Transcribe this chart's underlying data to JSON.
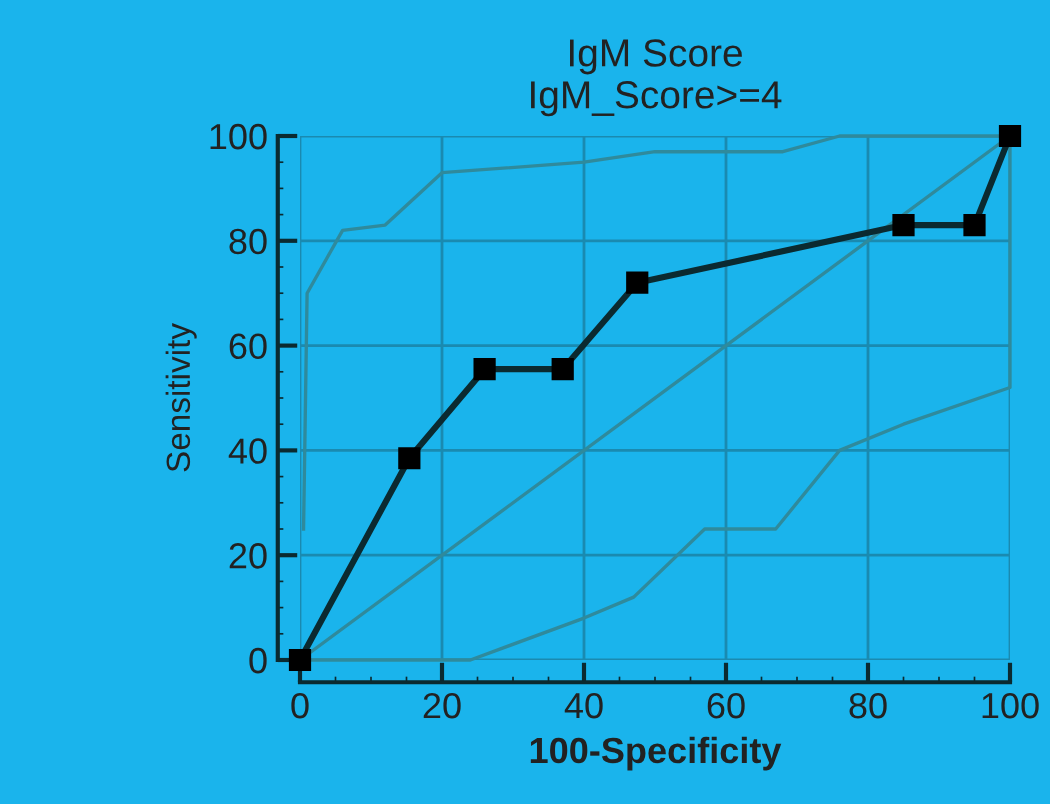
{
  "chart_data": {
    "type": "line",
    "title": "IgM Score\nIgM_Score>=4",
    "xlabel": "100-Specificity",
    "ylabel": "Sensitivity",
    "xlim": [
      0,
      100
    ],
    "ylim": [
      0,
      100
    ],
    "xticks": [
      0,
      20,
      40,
      60,
      80,
      100
    ],
    "yticks": [
      0,
      20,
      40,
      60,
      80,
      100
    ],
    "grid": true,
    "series": [
      {
        "color": "#0b2a30",
        "marker": "square",
        "x": [
          0,
          15.4,
          26,
          37,
          47.5,
          85,
          95,
          100
        ],
        "values": [
          0,
          38.5,
          55.5,
          55.5,
          72,
          83,
          83,
          100
        ]
      },
      {
        "color": "#2f8a9c",
        "marker": "none",
        "x": [
          0,
          100
        ],
        "values": [
          0,
          100
        ]
      },
      {
        "color": "#2f8a9c",
        "marker": "none",
        "x": [
          0.5,
          1,
          6,
          12,
          20,
          40,
          50,
          68,
          76,
          100
        ],
        "values": [
          25,
          70,
          82,
          83,
          93,
          95,
          97,
          97,
          100,
          100
        ]
      },
      {
        "color": "#2f8a9c",
        "marker": "none",
        "x": [
          0,
          24,
          40,
          47,
          57,
          67,
          76,
          85,
          100,
          100
        ],
        "values": [
          0,
          0,
          8,
          12,
          25,
          25,
          40,
          45,
          52,
          100
        ]
      }
    ]
  }
}
